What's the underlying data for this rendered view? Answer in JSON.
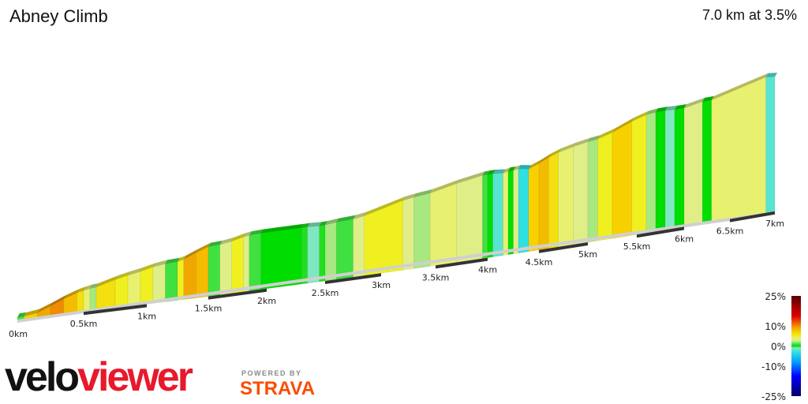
{
  "chart_data": {
    "type": "area",
    "title": "Abney Climb",
    "subtitle": "7.0 km at 3.5%",
    "xlabel": "",
    "ylabel": "",
    "x_ticks": [
      "0km",
      "0.5km",
      "1km",
      "1.5km",
      "2km",
      "2.5km",
      "3km",
      "3.5km",
      "4km",
      "4.5km",
      "5km",
      "5.5km",
      "6km",
      "6.5km",
      "7km"
    ],
    "xlim": [
      0,
      7
    ],
    "segments": [
      {
        "from": 0,
        "to": 0.05,
        "gradient": 1
      },
      {
        "from": 0.05,
        "to": 0.15,
        "gradient": 7
      },
      {
        "from": 0.15,
        "to": 0.25,
        "gradient": 9
      },
      {
        "from": 0.25,
        "to": 0.35,
        "gradient": 10
      },
      {
        "from": 0.35,
        "to": 0.45,
        "gradient": 8
      },
      {
        "from": 0.45,
        "to": 0.5,
        "gradient": 6
      },
      {
        "from": 0.5,
        "to": 0.55,
        "gradient": 4
      },
      {
        "from": 0.55,
        "to": 0.6,
        "gradient": 2
      },
      {
        "from": 0.6,
        "to": 0.75,
        "gradient": 6
      },
      {
        "from": 0.75,
        "to": 0.85,
        "gradient": 5
      },
      {
        "from": 0.85,
        "to": 0.95,
        "gradient": 4
      },
      {
        "from": 0.95,
        "to": 1.05,
        "gradient": 5
      },
      {
        "from": 1.05,
        "to": 1.15,
        "gradient": 3
      },
      {
        "from": 1.15,
        "to": 1.25,
        "gradient": 1
      },
      {
        "from": 1.25,
        "to": 1.3,
        "gradient": 5
      },
      {
        "from": 1.3,
        "to": 1.4,
        "gradient": 9
      },
      {
        "from": 1.4,
        "to": 1.5,
        "gradient": 8
      },
      {
        "from": 1.5,
        "to": 1.6,
        "gradient": 1
      },
      {
        "from": 1.6,
        "to": 1.7,
        "gradient": 3
      },
      {
        "from": 1.7,
        "to": 1.8,
        "gradient": 5
      },
      {
        "from": 1.8,
        "to": 1.85,
        "gradient": 3
      },
      {
        "from": 1.85,
        "to": 1.95,
        "gradient": 1
      },
      {
        "from": 1.95,
        "to": 2.3,
        "gradient": 0
      },
      {
        "from": 2.3,
        "to": 2.35,
        "gradient": 0.5
      },
      {
        "from": 2.35,
        "to": 2.45,
        "gradient": -1
      },
      {
        "from": 2.45,
        "to": 2.5,
        "gradient": 0.5
      },
      {
        "from": 2.5,
        "to": 2.6,
        "gradient": 2
      },
      {
        "from": 2.6,
        "to": 2.75,
        "gradient": 1
      },
      {
        "from": 2.75,
        "to": 2.85,
        "gradient": 3
      },
      {
        "from": 2.85,
        "to": 3.2,
        "gradient": 5
      },
      {
        "from": 3.2,
        "to": 3.3,
        "gradient": 3
      },
      {
        "from": 3.3,
        "to": 3.45,
        "gradient": 2
      },
      {
        "from": 3.45,
        "to": 3.7,
        "gradient": 4
      },
      {
        "from": 3.7,
        "to": 3.95,
        "gradient": 3
      },
      {
        "from": 3.95,
        "to": 4.0,
        "gradient": 1
      },
      {
        "from": 4.0,
        "to": 4.05,
        "gradient": 0
      },
      {
        "from": 4.05,
        "to": 4.15,
        "gradient": -2
      },
      {
        "from": 4.15,
        "to": 4.2,
        "gradient": 4
      },
      {
        "from": 4.2,
        "to": 4.25,
        "gradient": 0
      },
      {
        "from": 4.25,
        "to": 4.3,
        "gradient": 3
      },
      {
        "from": 4.3,
        "to": 4.4,
        "gradient": -3
      },
      {
        "from": 4.4,
        "to": 4.5,
        "gradient": 7
      },
      {
        "from": 4.5,
        "to": 4.6,
        "gradient": 8
      },
      {
        "from": 4.6,
        "to": 4.7,
        "gradient": 6
      },
      {
        "from": 4.7,
        "to": 4.85,
        "gradient": 4
      },
      {
        "from": 4.85,
        "to": 5.0,
        "gradient": 3
      },
      {
        "from": 5.0,
        "to": 5.1,
        "gradient": 2
      },
      {
        "from": 5.1,
        "to": 5.25,
        "gradient": 5
      },
      {
        "from": 5.25,
        "to": 5.45,
        "gradient": 7
      },
      {
        "from": 5.45,
        "to": 5.6,
        "gradient": 5
      },
      {
        "from": 5.6,
        "to": 5.7,
        "gradient": 2
      },
      {
        "from": 5.7,
        "to": 5.8,
        "gradient": 0
      },
      {
        "from": 5.8,
        "to": 5.9,
        "gradient": -1
      },
      {
        "from": 5.9,
        "to": 6.0,
        "gradient": 0
      },
      {
        "from": 6.0,
        "to": 6.2,
        "gradient": 3
      },
      {
        "from": 6.2,
        "to": 6.3,
        "gradient": 0
      },
      {
        "from": 6.3,
        "to": 6.9,
        "gradient": 4
      },
      {
        "from": 6.9,
        "to": 7.0,
        "gradient": -2
      }
    ],
    "colorbar": {
      "ticks": [
        {
          "value": 25,
          "label": "25%"
        },
        {
          "value": 10,
          "label": "10%"
        },
        {
          "value": 0,
          "label": "0%"
        },
        {
          "value": -10,
          "label": "-10%"
        },
        {
          "value": -25,
          "label": "-25%"
        }
      ],
      "range": [
        -25,
        25
      ],
      "stops": [
        {
          "value": -25,
          "color": "#000066"
        },
        {
          "value": -15,
          "color": "#0000ff"
        },
        {
          "value": -8,
          "color": "#00a0ff"
        },
        {
          "value": -3,
          "color": "#30e0e0"
        },
        {
          "value": -1,
          "color": "#80e8c0"
        },
        {
          "value": 0,
          "color": "#00dd00"
        },
        {
          "value": 1,
          "color": "#40e040"
        },
        {
          "value": 2,
          "color": "#a8e880"
        },
        {
          "value": 3,
          "color": "#e0ee88"
        },
        {
          "value": 4,
          "color": "#e8f070"
        },
        {
          "value": 5,
          "color": "#f0f020"
        },
        {
          "value": 7,
          "color": "#f8d000"
        },
        {
          "value": 9,
          "color": "#f0a800"
        },
        {
          "value": 11,
          "color": "#ee7000"
        },
        {
          "value": 15,
          "color": "#dd0000"
        },
        {
          "value": 25,
          "color": "#550000"
        }
      ]
    }
  },
  "branding": {
    "logo_part1": "velo",
    "logo_part2": "viewer",
    "powered_by": "POWERED BY",
    "strava": "STRAVA"
  }
}
